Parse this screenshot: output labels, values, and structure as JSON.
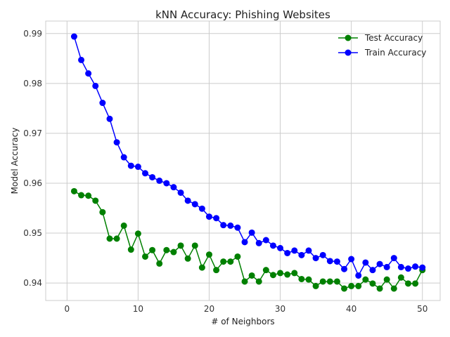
{
  "chart_data": {
    "type": "line",
    "title": "kNN Accuracy: Phishing Websites",
    "xlabel": "# of Neighbors",
    "ylabel": "Model Accuracy",
    "xlim": [
      -3,
      52.5
    ],
    "ylim": [
      0.9365,
      0.9925
    ],
    "xticks": [
      0,
      10,
      20,
      30,
      40,
      50
    ],
    "yticks": [
      0.94,
      0.95,
      0.96,
      0.97,
      0.98,
      0.99
    ],
    "xtick_labels": [
      "0",
      "10",
      "20",
      "30",
      "40",
      "50"
    ],
    "ytick_labels": [
      "0.94",
      "0.95",
      "0.96",
      "0.97",
      "0.98",
      "0.99"
    ],
    "grid": true,
    "legend_position": "top-right",
    "x": [
      1,
      2,
      3,
      4,
      5,
      6,
      7,
      8,
      9,
      10,
      11,
      12,
      13,
      14,
      15,
      16,
      17,
      18,
      19,
      20,
      21,
      22,
      23,
      24,
      25,
      26,
      27,
      28,
      29,
      30,
      31,
      32,
      33,
      34,
      35,
      36,
      37,
      38,
      39,
      40,
      41,
      42,
      43,
      44,
      45,
      46,
      47,
      48,
      49,
      50
    ],
    "series": [
      {
        "name": "Test Accuracy",
        "color": "#008000",
        "values": [
          0.9584,
          0.9576,
          0.9575,
          0.9565,
          0.9542,
          0.9489,
          0.9489,
          0.9515,
          0.9467,
          0.9499,
          0.9453,
          0.9466,
          0.9439,
          0.9466,
          0.9462,
          0.9475,
          0.9449,
          0.9475,
          0.9431,
          0.9457,
          0.9426,
          0.9443,
          0.9443,
          0.9453,
          0.9403,
          0.9415,
          0.9403,
          0.9426,
          0.9416,
          0.942,
          0.9417,
          0.942,
          0.9408,
          0.9407,
          0.9394,
          0.9403,
          0.9403,
          0.9403,
          0.9389,
          0.9394,
          0.9394,
          0.9407,
          0.9399,
          0.9389,
          0.9407,
          0.9389,
          0.9411,
          0.9399,
          0.9399,
          0.9426
        ]
      },
      {
        "name": "Train Accuracy",
        "color": "#0000ff",
        "values": [
          0.9894,
          0.9847,
          0.982,
          0.9795,
          0.9761,
          0.9729,
          0.9682,
          0.9652,
          0.9635,
          0.9633,
          0.962,
          0.9612,
          0.9605,
          0.96,
          0.9592,
          0.9581,
          0.9565,
          0.9558,
          0.9549,
          0.9533,
          0.953,
          0.9516,
          0.9515,
          0.9511,
          0.9482,
          0.9501,
          0.948,
          0.9486,
          0.9475,
          0.947,
          0.946,
          0.9465,
          0.9456,
          0.9465,
          0.945,
          0.9456,
          0.9444,
          0.9443,
          0.9428,
          0.9448,
          0.9415,
          0.9441,
          0.9426,
          0.9438,
          0.9432,
          0.945,
          0.9432,
          0.9429,
          0.9433,
          0.9431
        ]
      }
    ]
  }
}
